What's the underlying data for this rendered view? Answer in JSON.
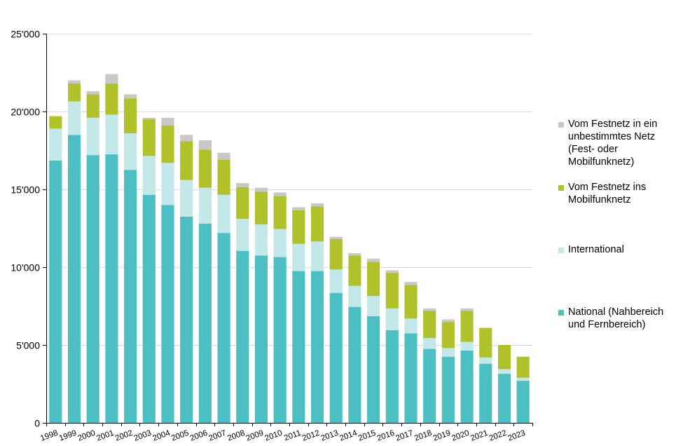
{
  "chart_data": {
    "type": "bar",
    "stacked": true,
    "categories": [
      "1998",
      "1999",
      "2000",
      "2001",
      "2002",
      "2003",
      "2004",
      "2005",
      "2006",
      "2007",
      "2008",
      "2009",
      "2010",
      "2011",
      "2012",
      "2013",
      "2014",
      "2015",
      "2016",
      "2017",
      "2018",
      "2019",
      "2020",
      "2021",
      "2022",
      "2023"
    ],
    "ylim": [
      0,
      25000
    ],
    "yticks": [
      0,
      5000,
      10000,
      15000,
      20000,
      25000
    ],
    "ytick_labels": [
      "0",
      "5'000",
      "10'000",
      "15'000",
      "20'000",
      "25'000"
    ],
    "grid": true,
    "legend_position": "right",
    "series": [
      {
        "name": "National (Nahbereich und Fernbereich)",
        "color": "#4bbfc4",
        "values": [
          16850,
          18500,
          17200,
          17250,
          16250,
          14650,
          14000,
          13250,
          12800,
          12200,
          11050,
          10750,
          10650,
          9750,
          9750,
          8350,
          7450,
          6850,
          5950,
          5750,
          4750,
          4250,
          4650,
          3800,
          3150,
          2700
        ]
      },
      {
        "name": "International",
        "color": "#c2e8ea",
        "values": [
          2050,
          2150,
          2400,
          2550,
          2350,
          2500,
          2700,
          2350,
          2300,
          2450,
          2050,
          2000,
          1800,
          1750,
          1900,
          1500,
          1350,
          1300,
          1400,
          950,
          700,
          550,
          550,
          400,
          300,
          200
        ]
      },
      {
        "name": "Vom Festnetz ins Mobilfunknetz",
        "color": "#b0c12a",
        "values": [
          800,
          1150,
          1500,
          2000,
          2250,
          2350,
          2400,
          2500,
          2450,
          2250,
          2050,
          2100,
          2100,
          2150,
          2250,
          1950,
          1950,
          2200,
          2300,
          2150,
          1750,
          1700,
          2000,
          1900,
          1550,
          1350
        ]
      },
      {
        "name": "Vom Festnetz in ein unbestimmtes Netz (Fest- oder Mobilfunknetz)",
        "color": "#c8c8c8",
        "values": [
          0,
          200,
          200,
          600,
          250,
          100,
          500,
          400,
          600,
          450,
          250,
          250,
          250,
          200,
          200,
          150,
          150,
          200,
          150,
          200,
          150,
          150,
          150,
          0,
          0,
          0
        ]
      }
    ]
  },
  "legend": {
    "items": [
      {
        "label": "Vom Festnetz in ein\nunbestimmtes Netz\n(Fest- oder\nMobilfunknetz)",
        "color": "#c8c8c8"
      },
      {
        "label": "Vom Festnetz ins\nMobilfunknetz",
        "color": "#b0c12a"
      },
      {
        "label": "International",
        "color": "#c2e8ea"
      },
      {
        "label": "National (Nahbereich\nund Fernbereich)",
        "color": "#4bbfc4"
      }
    ]
  }
}
